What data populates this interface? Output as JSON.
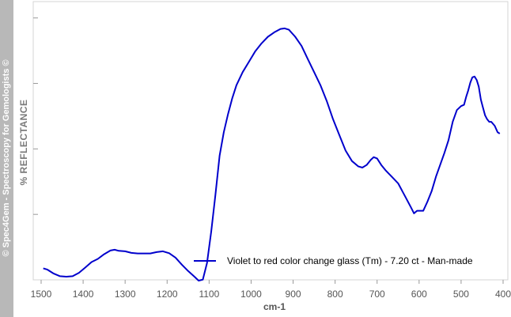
{
  "watermark": "© Spec4Gem - Spectroscopy for Gemologists ©",
  "chart_data": {
    "type": "line",
    "xlabel": "cm-1",
    "ylabel": "% REFLECTANCE",
    "xlim": [
      1500,
      400
    ],
    "x_reversed": true,
    "x_ticks": [
      1500,
      1400,
      1300,
      1200,
      1100,
      1000,
      900,
      800,
      700,
      600,
      500,
      400
    ],
    "y_ticks_unlabeled": 4,
    "legend_position": "bottom-right",
    "series": [
      {
        "name": "Violet to red color change glass (Tm) - 7.20 ct - Man-made",
        "color": "#0000cc",
        "x": [
          1495,
          1485,
          1470,
          1455,
          1440,
          1425,
          1410,
          1395,
          1380,
          1365,
          1350,
          1335,
          1325,
          1315,
          1300,
          1285,
          1270,
          1255,
          1240,
          1225,
          1210,
          1195,
          1180,
          1165,
          1150,
          1135,
          1125,
          1115,
          1105,
          1095,
          1085,
          1075,
          1065,
          1055,
          1045,
          1035,
          1020,
          1005,
          990,
          975,
          960,
          945,
          930,
          920,
          910,
          895,
          880,
          865,
          850,
          835,
          820,
          805,
          790,
          775,
          760,
          745,
          735,
          725,
          715,
          708,
          700,
          690,
          680,
          665,
          650,
          640,
          630,
          620,
          612,
          605,
          598,
          590,
          580,
          570,
          560,
          550,
          540,
          530,
          520,
          510,
          500,
          493,
          488,
          483,
          478,
          473,
          468,
          463,
          458,
          453,
          448,
          443,
          438,
          433,
          428,
          420,
          413,
          408
        ],
        "y": [
          5.0,
          4.5,
          3.0,
          2.0,
          1.8,
          2.0,
          3.3,
          5.3,
          7.4,
          8.6,
          10.4,
          11.8,
          12.1,
          11.7,
          11.5,
          10.9,
          10.7,
          10.7,
          10.7,
          11.2,
          11.5,
          10.8,
          9.1,
          6.4,
          4.0,
          1.8,
          0.3,
          0.7,
          7.0,
          19.0,
          33.0,
          48.0,
          57.0,
          64.0,
          70.0,
          75.0,
          80.0,
          84.0,
          88.0,
          91.0,
          93.5,
          95.2,
          96.5,
          96.7,
          96.2,
          93.5,
          90.0,
          85.0,
          80.0,
          75.0,
          69.0,
          62.0,
          56.0,
          50.0,
          46.0,
          44.0,
          43.5,
          44.5,
          46.5,
          47.5,
          47.0,
          44.5,
          42.5,
          40.0,
          37.5,
          34.5,
          31.5,
          28.5,
          26.0,
          27.0,
          27.0,
          27.0,
          30.5,
          34.5,
          40.0,
          44.5,
          49.0,
          54.0,
          61.0,
          65.5,
          67.0,
          67.5,
          70.5,
          73.0,
          76.0,
          78.0,
          78.3,
          77.0,
          74.5,
          69.5,
          66.5,
          63.5,
          62.0,
          61.0,
          61.0,
          59.5,
          57.0,
          56.5
        ]
      }
    ]
  }
}
